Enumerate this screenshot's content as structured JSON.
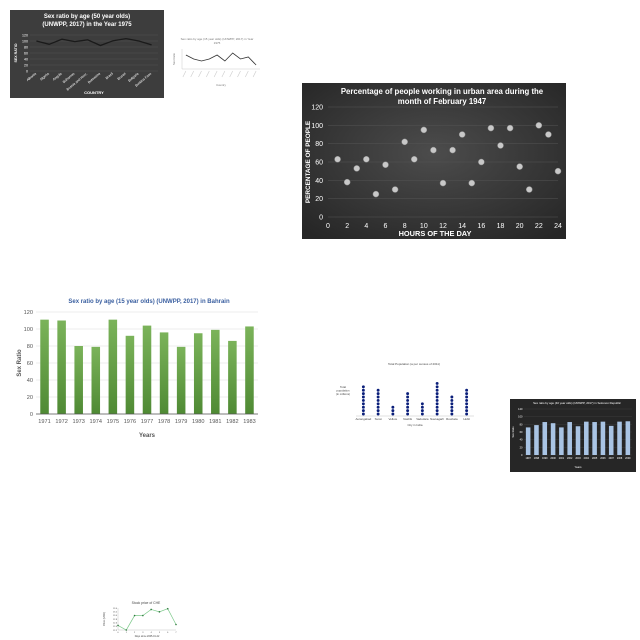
{
  "chart_data": [
    {
      "id": "c1",
      "type": "line",
      "title_lines": [
        "Sex ratio by age (50 year olds)",
        "(UNWPP, 2017) in the Year 1975"
      ],
      "xlabel": "COUNTRY",
      "ylabel": "SEX RATIO",
      "categories": [
        "Albania",
        "Algeria",
        "Angola",
        "Bahamas",
        "Bosnia and Herz.",
        "Botswana",
        "Brazil",
        "Brunei",
        "Bulgaria",
        "Burkina Faso"
      ],
      "values": [
        100,
        89,
        106,
        98,
        104,
        85,
        101,
        108,
        100,
        87
      ],
      "ylim": [
        0,
        120
      ],
      "yticks": [
        0,
        20,
        40,
        60,
        80,
        100,
        120
      ],
      "grid": true,
      "colors": {
        "background": "#3d3d3d",
        "line": "#1a1a1a",
        "text": "#ffffff"
      }
    },
    {
      "id": "c2",
      "type": "line",
      "title_lines": [
        "Sex ratio by age (15 year olds) (UNWPP, 2017) in Year",
        "1975"
      ],
      "xlabel": "Country",
      "ylabel": "Sex Ratio",
      "values": [
        103,
        101,
        100,
        101,
        103,
        100,
        104,
        101,
        102,
        98
      ],
      "ylim": [
        96,
        106
      ],
      "grid": false,
      "colors": {
        "background": "#ffffff",
        "line": "#333333",
        "text": "#777777"
      }
    },
    {
      "id": "c3",
      "type": "scatter",
      "title_lines": [
        "Percentage of people working in urban area during the",
        "month of February 1947"
      ],
      "xlabel": "HOURS OF THE DAY",
      "ylabel": "PERCENTAGE OF PEOPLE",
      "x": [
        1,
        2,
        3,
        4,
        5,
        6,
        7,
        8,
        9,
        10,
        11,
        12,
        13,
        14,
        15,
        16,
        17,
        18,
        19,
        20,
        21,
        22,
        23,
        24
      ],
      "y": [
        63,
        38,
        53,
        63,
        25,
        57,
        30,
        82,
        63,
        95,
        73,
        37,
        73,
        90,
        37,
        60,
        97,
        78,
        97,
        55,
        30,
        100,
        90,
        50
      ],
      "xlim": [
        0,
        24
      ],
      "ylim": [
        0,
        120
      ],
      "xticks": [
        0,
        2,
        4,
        6,
        8,
        10,
        12,
        14,
        16,
        18,
        20,
        22,
        24
      ],
      "yticks": [
        0,
        20,
        40,
        60,
        80,
        100,
        120
      ],
      "grid": true,
      "colors": {
        "background": "#383838",
        "marker": "#c8c8c8",
        "text": "#ffffff"
      }
    },
    {
      "id": "c4",
      "type": "bar",
      "title": "Sex ratio by age (15 year olds) (UNWPP, 2017) in Bahrain",
      "xlabel": "Years",
      "ylabel": "Sex Ratio",
      "categories": [
        "1971",
        "1972",
        "1973",
        "1974",
        "1975",
        "1976",
        "1977",
        "1978",
        "1979",
        "1980",
        "1981",
        "1982",
        "1983"
      ],
      "values": [
        111,
        110,
        80,
        79,
        111,
        92,
        104,
        96,
        79,
        95,
        99,
        86,
        103
      ],
      "ylim": [
        0,
        120
      ],
      "yticks": [
        0,
        20,
        40,
        60,
        80,
        100,
        120
      ],
      "grid": true,
      "colors": {
        "bar_top": "#7bb35a",
        "bar_bottom": "#4f8a34",
        "text": "#555555",
        "title": "#3a5fa0"
      }
    },
    {
      "id": "c5",
      "type": "scatter",
      "title": "Total Population (a per census of 2011)",
      "xlabel": "City in India",
      "ylabel_lines": [
        "Total",
        "population",
        "(in millions)"
      ],
      "categories": [
        "Aurangabad",
        "Surat",
        "Vellore",
        "Nashik",
        "Vadodara",
        "Navsagarh",
        "Rourkela",
        "Hubli"
      ],
      "values": [
        9,
        8,
        3,
        7,
        4,
        10,
        6,
        8
      ],
      "colors": {
        "marker": "#0b1f7a",
        "text": "#444444"
      }
    },
    {
      "id": "c6",
      "type": "bar",
      "title": "Sex ratio by age (40 year olds) (UNWPP, 2017) in Solomon Republic",
      "xlabel": "Years",
      "ylabel": "Sex Ratio",
      "categories": [
        "1997",
        "1998",
        "1999",
        "2000",
        "2001",
        "2002",
        "2003",
        "2004",
        "2005",
        "2006",
        "2007",
        "2008",
        "2009"
      ],
      "values": [
        72,
        78,
        86,
        83,
        72,
        86,
        75,
        87,
        86,
        87,
        76,
        87,
        88
      ],
      "ylim": [
        0,
        120
      ],
      "yticks": [
        0,
        20,
        40,
        60,
        80,
        100,
        120
      ],
      "grid": true,
      "colors": {
        "background": "#262626",
        "bar": "#a9c4e4",
        "text": "#ffffff"
      }
    },
    {
      "id": "c7",
      "type": "line",
      "title": "Stock price of CHE",
      "xlabel": "Days since 2005-01-22",
      "ylabel": "Price (USD)",
      "x": [
        0,
        1,
        2,
        3,
        4,
        5,
        6,
        7
      ],
      "values": [
        12.45,
        12.2,
        12.99,
        12.99,
        13.32,
        13.19,
        13.36,
        12.5
      ],
      "xlim": [
        0,
        7
      ],
      "ylim": [
        12.2,
        13.4
      ],
      "xticks": [
        0,
        1,
        2,
        3,
        4,
        5,
        6,
        7
      ],
      "yticks": [
        12.2,
        12.4,
        12.6,
        12.8,
        13.0,
        13.2,
        13.4
      ],
      "ytick_labels": [
        "12.2",
        "12.4",
        "12.6",
        "12.8",
        "13.0",
        "13.2",
        "13.4"
      ],
      "grid": false,
      "colors": {
        "line": "#7cc98a",
        "marker": "#2f7a3e",
        "text": "#444444"
      }
    }
  ]
}
